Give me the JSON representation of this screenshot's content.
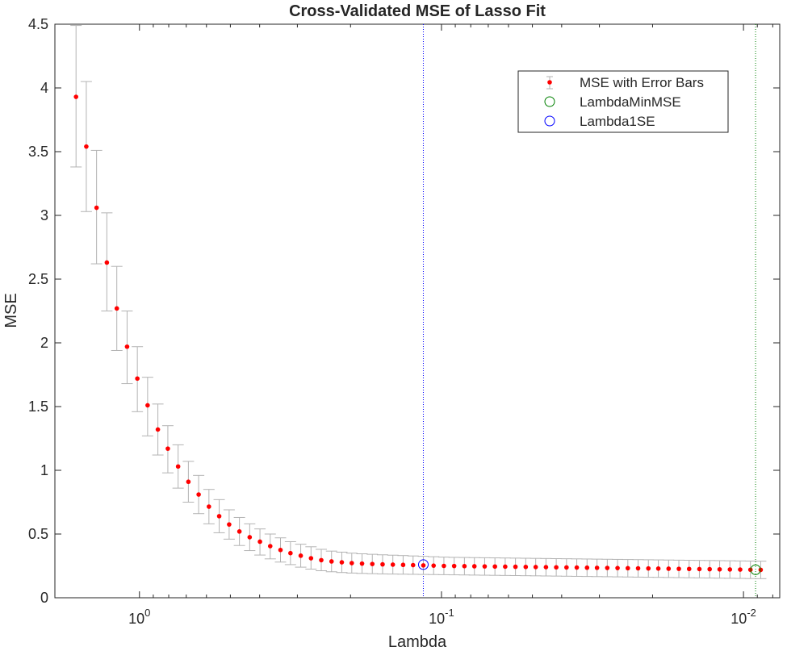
{
  "chart_data": {
    "type": "scatter",
    "title": "Cross-Validated MSE of Lasso Fit",
    "xlabel": "Lambda",
    "ylabel": "MSE",
    "x_scale": "log",
    "x_direction": "reversed",
    "xlim_log10": [
      0.28,
      -2.12
    ],
    "ylim": [
      0,
      4.5
    ],
    "y_ticks": [
      {
        "value": 0,
        "label": "0"
      },
      {
        "value": 0.5,
        "label": "0.5"
      },
      {
        "value": 1,
        "label": "1"
      },
      {
        "value": 1.5,
        "label": "1.5"
      },
      {
        "value": 2,
        "label": "2"
      },
      {
        "value": 2.5,
        "label": "2.5"
      },
      {
        "value": 3,
        "label": "3"
      },
      {
        "value": 3.5,
        "label": "3.5"
      },
      {
        "value": 4,
        "label": "4"
      },
      {
        "value": 4.5,
        "label": "4.5"
      }
    ],
    "x_ticks": [
      {
        "log10": 0,
        "base": "10",
        "exp": "0"
      },
      {
        "log10": -1,
        "base": "10",
        "exp": "-1"
      },
      {
        "log10": -2,
        "base": "10",
        "exp": "-2"
      }
    ],
    "grid": false,
    "legend_position": "top-right",
    "series": {
      "name": "MSE with Error Bars",
      "color": "#ff0000",
      "errorbar_color": "#b3b3b3",
      "log10_lambda": [
        0.21,
        0.137,
        0.064,
        -0.01,
        -0.083,
        -0.156,
        -0.229,
        -0.303,
        -0.376,
        -0.449,
        -0.522,
        -0.596,
        -0.669,
        -0.742,
        -0.815,
        -0.889,
        -0.962,
        -1.035,
        -1.108,
        -1.182,
        -1.255,
        -1.328,
        -1.401,
        -1.475,
        -1.548,
        -1.621,
        -1.694,
        -1.768,
        -1.841,
        -1.914,
        -1.987,
        -2.061,
        -0.7,
        -0.6
      ],
      "log10_lambda_full": [
        0.21,
        0.176,
        0.142,
        0.108,
        0.075,
        0.041,
        0.007,
        -0.027,
        -0.061,
        -0.094,
        -0.128,
        -0.162,
        -0.196,
        -0.23,
        -0.264,
        -0.297,
        -0.331,
        -0.365,
        -0.399,
        -0.433,
        -0.467,
        -0.5,
        -0.534,
        -0.568,
        -0.602,
        -0.636,
        -0.67,
        -0.703,
        -0.737,
        -0.771,
        -0.805,
        -0.839,
        -0.873,
        -0.906,
        -0.94,
        -0.974,
        -1.008,
        -1.042,
        -1.076,
        -1.109,
        -1.143,
        -1.177,
        -1.211,
        -1.245,
        -1.279,
        -1.312,
        -1.346,
        -1.38,
        -1.414,
        -1.448,
        -1.482,
        -1.515,
        -1.549,
        -1.583,
        -1.617,
        -1.651,
        -1.685,
        -1.718,
        -1.752,
        -1.786,
        -1.82,
        -1.854,
        -1.888,
        -1.921,
        -1.955,
        -1.989,
        -2.023,
        -2.057
      ],
      "mse": [
        3.93,
        3.54,
        3.06,
        2.63,
        2.27,
        1.97,
        1.72,
        1.51,
        1.32,
        1.17,
        1.03,
        0.91,
        0.81,
        0.715,
        0.64,
        0.575,
        0.52,
        0.475,
        0.44,
        0.405,
        0.375,
        0.35,
        0.33,
        0.31,
        0.295,
        0.285,
        0.278,
        0.272,
        0.268,
        0.265,
        0.262,
        0.26,
        0.258,
        0.256,
        0.254,
        0.252,
        0.25,
        0.249,
        0.248,
        0.247,
        0.246,
        0.245,
        0.244,
        0.243,
        0.242,
        0.241,
        0.24,
        0.239,
        0.238,
        0.237,
        0.236,
        0.235,
        0.234,
        0.233,
        0.232,
        0.231,
        0.23,
        0.229,
        0.228,
        0.227,
        0.226,
        0.225,
        0.224,
        0.223,
        0.222,
        0.221,
        0.22,
        0.219
      ],
      "err_low": [
        3.38,
        3.03,
        2.62,
        2.25,
        1.94,
        1.68,
        1.46,
        1.27,
        1.12,
        0.98,
        0.86,
        0.75,
        0.66,
        0.58,
        0.51,
        0.46,
        0.41,
        0.37,
        0.335,
        0.305,
        0.28,
        0.26,
        0.24,
        0.225,
        0.212,
        0.204,
        0.198,
        0.194,
        0.191,
        0.189,
        0.187,
        0.186,
        0.185,
        0.184,
        0.183,
        0.182,
        0.181,
        0.18,
        0.179,
        0.178,
        0.177,
        0.176,
        0.175,
        0.174,
        0.173,
        0.172,
        0.171,
        0.17,
        0.169,
        0.168,
        0.167,
        0.166,
        0.165,
        0.164,
        0.163,
        0.162,
        0.161,
        0.16,
        0.159,
        0.158,
        0.157,
        0.156,
        0.155,
        0.154,
        0.153,
        0.152,
        0.151,
        0.15
      ],
      "err_high": [
        4.49,
        4.05,
        3.51,
        3.02,
        2.6,
        2.25,
        1.97,
        1.73,
        1.52,
        1.35,
        1.2,
        1.07,
        0.96,
        0.85,
        0.77,
        0.69,
        0.63,
        0.58,
        0.54,
        0.5,
        0.47,
        0.44,
        0.42,
        0.4,
        0.38,
        0.366,
        0.358,
        0.35,
        0.345,
        0.341,
        0.337,
        0.334,
        0.331,
        0.328,
        0.325,
        0.322,
        0.319,
        0.317,
        0.316,
        0.315,
        0.314,
        0.313,
        0.312,
        0.311,
        0.31,
        0.309,
        0.308,
        0.307,
        0.306,
        0.305,
        0.304,
        0.303,
        0.302,
        0.301,
        0.3,
        0.299,
        0.298,
        0.297,
        0.296,
        0.295,
        0.294,
        0.293,
        0.292,
        0.291,
        0.29,
        0.289,
        0.288,
        0.287
      ]
    },
    "lambda_min_mse": {
      "name": "LambdaMinMSE",
      "log10_lambda": -2.04,
      "mse": 0.22,
      "color": "#008000"
    },
    "lambda_1se": {
      "name": "Lambda1SE",
      "log10_lambda": -0.94,
      "mse": 0.26,
      "color": "#0000ff"
    }
  }
}
